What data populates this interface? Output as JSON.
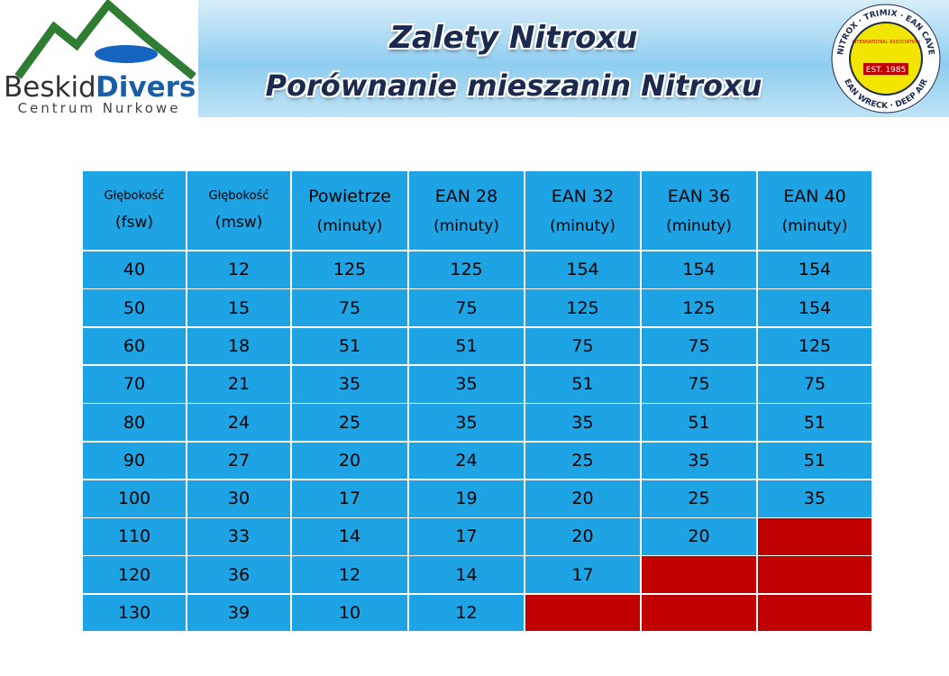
{
  "header": {
    "logo": {
      "brand_1": "Beskid",
      "brand_2": "Divers",
      "tagline": "Centrum Nurkowe"
    },
    "title": "Zalety Nitroxu",
    "subtitle": "Porównanie mieszanin Nitroxu",
    "badge": {
      "ring_top": "NITROX · TRIMIX · EAN CAVE",
      "ring_bottom": "EAN WRECK · DEEP AIR",
      "association": "INTERNATIONAL ASSOCIATION",
      "est": "EST. 1985"
    }
  },
  "table": {
    "columns": [
      [
        "Głębokość",
        "(fsw)"
      ],
      [
        "Głębokość",
        "(msw)"
      ],
      [
        "Powietrze",
        "(minuty)"
      ],
      [
        "EAN 28",
        "(minuty)"
      ],
      [
        "EAN 32",
        "(minuty)"
      ],
      [
        "EAN 36",
        "(minuty)"
      ],
      [
        "EAN 40",
        "(minuty)"
      ]
    ],
    "rows": [
      [
        40,
        12,
        125,
        125,
        154,
        154,
        154
      ],
      [
        50,
        15,
        75,
        75,
        125,
        125,
        154
      ],
      [
        60,
        18,
        51,
        51,
        75,
        75,
        125
      ],
      [
        70,
        21,
        35,
        35,
        51,
        75,
        75
      ],
      [
        80,
        24,
        25,
        35,
        35,
        51,
        51
      ],
      [
        90,
        27,
        20,
        24,
        25,
        35,
        51
      ],
      [
        100,
        30,
        17,
        19,
        20,
        25,
        35
      ],
      [
        110,
        33,
        14,
        17,
        20,
        20,
        null
      ],
      [
        120,
        36,
        12,
        14,
        17,
        null,
        null
      ],
      [
        130,
        39,
        10,
        12,
        null,
        null,
        null
      ]
    ],
    "cell_color": "#1ea4e4",
    "empty_color": "#c00000"
  }
}
